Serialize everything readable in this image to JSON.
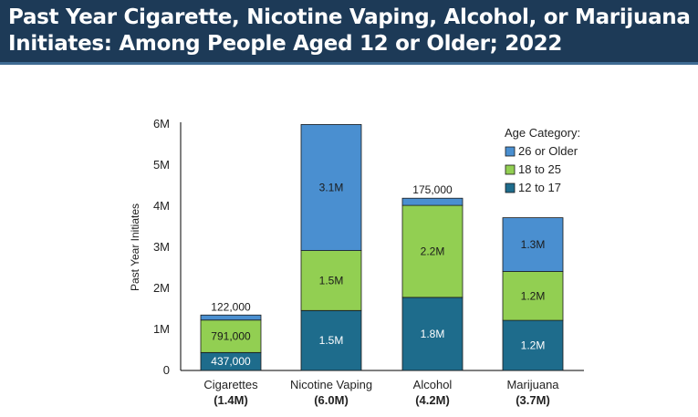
{
  "header": {
    "title_line1": "Past Year Cigarette, Nicotine Vaping, Alcohol, or Marijuana",
    "title_line2": "Initiates: Among People Aged 12 or Older; 2022"
  },
  "colors": {
    "header_bg": "#1d3a57",
    "series_26_or_older": "#4a8fd0",
    "series_18_to_25": "#92cf52",
    "series_12_to_17": "#1e6c8c"
  },
  "chart_data": {
    "type": "bar",
    "stacked": true,
    "title": "Past Year Cigarette, Nicotine Vaping, Alcohol, or Marijuana Initiates: Among People Aged 12 or Older; 2022",
    "xlabel": "",
    "ylabel": "Past Year Initiates",
    "ylim": [
      0,
      6000000
    ],
    "yticks": [
      {
        "value": 0,
        "label": "0"
      },
      {
        "value": 1000000,
        "label": "1M"
      },
      {
        "value": 2000000,
        "label": "2M"
      },
      {
        "value": 3000000,
        "label": "3M"
      },
      {
        "value": 4000000,
        "label": "4M"
      },
      {
        "value": 5000000,
        "label": "5M"
      },
      {
        "value": 6000000,
        "label": "6M"
      }
    ],
    "grid": false,
    "legend": {
      "title": "Age Category:",
      "placement": "top-right"
    },
    "categories": [
      "Cigarettes",
      "Nicotine Vaping",
      "Alcohol",
      "Marijuana"
    ],
    "category_totals": [
      "(1.4M)",
      "(6.0M)",
      "(4.2M)",
      "(3.7M)"
    ],
    "series": [
      {
        "name": "12 to 17",
        "color": "#1e6c8c",
        "values": [
          437000,
          1460000,
          1780000,
          1220000
        ],
        "labels": [
          "437,000",
          "1.5M",
          "1.8M",
          "1.2M"
        ]
      },
      {
        "name": "18 to 25",
        "color": "#92cf52",
        "values": [
          791000,
          1460000,
          2240000,
          1190000
        ],
        "labels": [
          "791,000",
          "1.5M",
          "2.2M",
          "1.2M"
        ]
      },
      {
        "name": "26 or Older",
        "color": "#4a8fd0",
        "values": [
          122000,
          3070000,
          175000,
          1310000
        ],
        "labels": [
          "122,000",
          "3.1M",
          "175,000",
          "1.3M"
        ]
      }
    ],
    "legend_order": [
      "26 or Older",
      "18 to 25",
      "12 to 17"
    ]
  }
}
